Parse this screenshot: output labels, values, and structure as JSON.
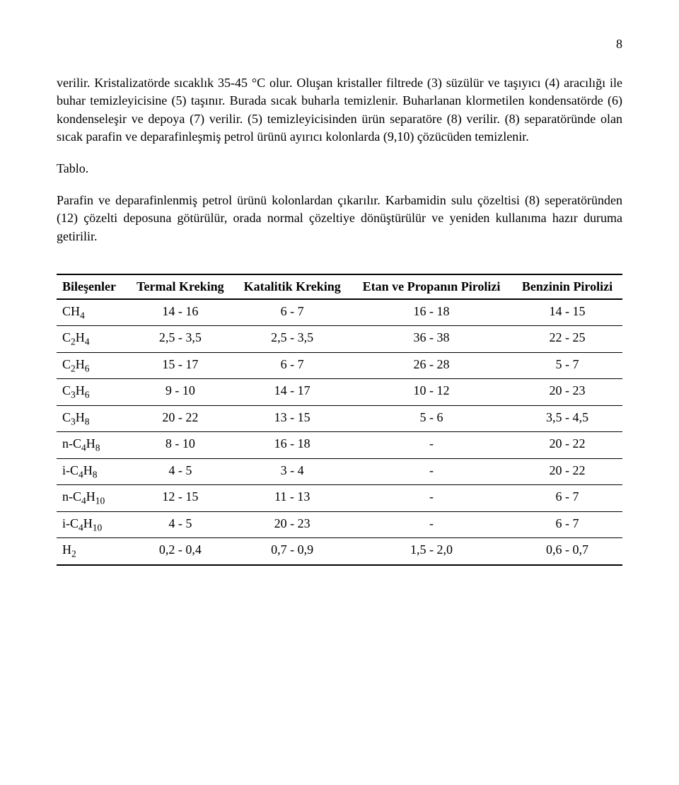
{
  "page_number": "8",
  "paragraphs": {
    "p1": "verilir. Kristalizatörde sıcaklık 35-45 °C olur. Oluşan kristaller filtrede (3) süzülür ve taşıyıcı (4) aracılığı ile buhar temizleyicisine (5) taşınır. Burada sıcak buharla temizlenir. Buharlanan klormetilen kondensatörde (6) kondenseleşir ve depoya (7) verilir. (5) temizleyicisinden ürün separatöre (8) verilir. (8) separatöründe olan sıcak parafin ve deparafinleşmiş petrol ürünü ayırıcı kolonlarda (9,10) çözücüden temizlenir.",
    "tablo": "Tablo.",
    "p2": "Parafin ve deparafinlenmiş petrol ürünü kolonlardan çıkarılır. Karbamidin sulu çözeltisi (8) seperatöründen (12) çözelti deposuna götürülür, orada normal çözeltiye dönüştürülür ve yeniden kullanıma hazır duruma getirilir."
  },
  "table": {
    "columns": [
      "Bileşenler",
      "Termal Kreking",
      "Katalitik Kreking",
      "Etan ve Propanın Pirolizi",
      "Benzinin Pirolizi"
    ],
    "rows": [
      {
        "compound_html": "CH<span class='sub'>4</span>",
        "vals": [
          "14 - 16",
          "6 - 7",
          "16 - 18",
          "14 - 15"
        ]
      },
      {
        "compound_html": "C<span class='sub'>2</span>H<span class='sub'>4</span>",
        "vals": [
          "2,5 - 3,5",
          "2,5 - 3,5",
          "36 - 38",
          "22 - 25"
        ]
      },
      {
        "compound_html": "C<span class='sub'>2</span>H<span class='sub'>6</span>",
        "vals": [
          "15 - 17",
          "6 - 7",
          "26 - 28",
          "5 - 7"
        ]
      },
      {
        "compound_html": "C<span class='sub'>3</span>H<span class='sub'>6</span>",
        "vals": [
          "9 - 10",
          "14 - 17",
          "10 - 12",
          "20 - 23"
        ]
      },
      {
        "compound_html": "C<span class='sub'>3</span>H<span class='sub'>8</span>",
        "vals": [
          "20 - 22",
          "13 - 15",
          "5 - 6",
          "3,5 - 4,5"
        ]
      },
      {
        "compound_html": "n-C<span class='sub'>4</span>H<span class='sub'>8</span>",
        "vals": [
          "8 - 10",
          "16 - 18",
          "-",
          "20 - 22"
        ]
      },
      {
        "compound_html": "i-C<span class='sub'>4</span>H<span class='sub'>8</span>",
        "vals": [
          "4 - 5",
          "3 - 4",
          "-",
          "20 - 22"
        ]
      },
      {
        "compound_html": "n-C<span class='sub'>4</span>H<span class='sub'>10</span>",
        "vals": [
          "12 - 15",
          "11 - 13",
          "-",
          "6 - 7"
        ]
      },
      {
        "compound_html": "i-C<span class='sub'>4</span>H<span class='sub'>10</span>",
        "vals": [
          "4 - 5",
          "20 - 23",
          "-",
          "6 - 7"
        ]
      },
      {
        "compound_html": "H<span class='sub'>2</span>",
        "vals": [
          "0,2 - 0,4",
          "0,7 - 0,9",
          "1,5 - 2,0",
          "0,6 - 0,7"
        ]
      }
    ]
  }
}
